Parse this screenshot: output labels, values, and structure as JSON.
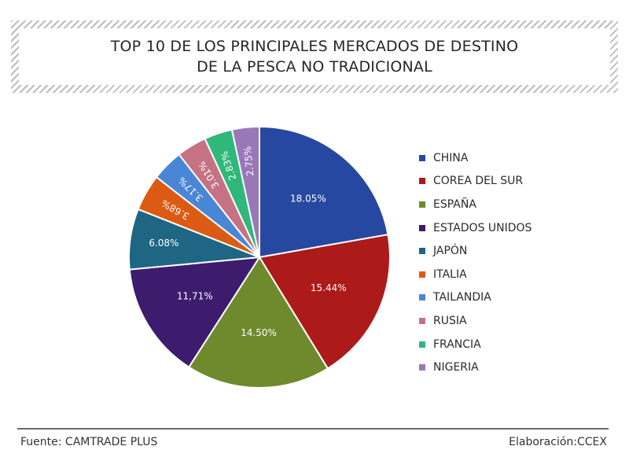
{
  "title": {
    "line1": "TOP 10 DE LOS PRINCIPALES MERCADOS DE DESTINO",
    "line2": "DE LA PESCA NO TRADICIONAL"
  },
  "chart_data": {
    "type": "pie",
    "title": "TOP 10 DE LOS PRINCIPALES MERCADOS DE DESTINO DE LA PESCA NO TRADICIONAL",
    "legend_position": "right",
    "slices": [
      {
        "name": "CHINA",
        "value": 18.05,
        "label": "18.05%",
        "color": "#2748a0"
      },
      {
        "name": "COREA DEL SUR",
        "value": 15.44,
        "label": "15.44%",
        "color": "#ad1a1a"
      },
      {
        "name": "ESPAÑA",
        "value": 14.5,
        "label": "14.50%",
        "color": "#6e8a2c"
      },
      {
        "name": "ESTADOS UNIDOS",
        "value": 11.71,
        "label": "11,71%",
        "color": "#3d1c6e"
      },
      {
        "name": "JAPÓN",
        "value": 6.08,
        "label": "6.08%",
        "color": "#1f6684"
      },
      {
        "name": "ITALIA",
        "value": 3.68,
        "label": "3.68%",
        "color": "#dc5b14"
      },
      {
        "name": "TAILANDIA",
        "value": 3.17,
        "label": "3.17%",
        "color": "#4a86d6"
      },
      {
        "name": "RUSIA",
        "value": 3.01,
        "label": "3.01%",
        "color": "#c57285"
      },
      {
        "name": "FRANCIA",
        "value": 2.83,
        "label": "2.83%",
        "color": "#2fb87a"
      },
      {
        "name": "NIGERIA",
        "value": 2.75,
        "label": "2.75%",
        "color": "#9a78b8"
      }
    ]
  },
  "footer": {
    "source": "Fuente: CAMTRADE PLUS",
    "credit": "Elaboración:CCEX"
  }
}
